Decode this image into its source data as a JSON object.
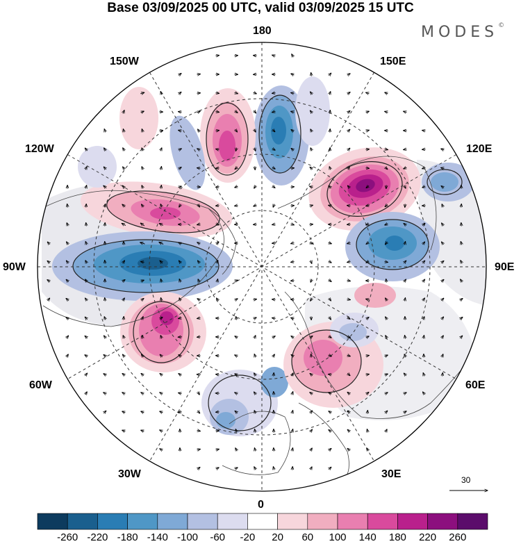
{
  "title": "Base 03/09/2025 00 UTC, valid 03/09/2025 15 UTC",
  "brand": "MODES",
  "brand_mark": "©",
  "longitude_labels": {
    "top": "180",
    "bottom": "0",
    "left": "90W",
    "right": "90E",
    "w150": "150W",
    "e150": "150E",
    "w120": "120W",
    "e120": "120E",
    "w60": "60W",
    "e60": "60E",
    "w30": "30W",
    "e30": "30E"
  },
  "reference_vector": {
    "value": "30"
  },
  "colorbar": {
    "labels": [
      "-260",
      "-220",
      "-180",
      "-140",
      "-100",
      "-60",
      "-20",
      "20",
      "60",
      "100",
      "140",
      "180",
      "220",
      "260"
    ],
    "colors": [
      "#0d3b5e",
      "#1a5f8e",
      "#2a7db4",
      "#4f97c6",
      "#7fa9d6",
      "#b3c0e2",
      "#dcdcef",
      "#ffffff",
      "#f7d6dc",
      "#f1aec0",
      "#e97fb0",
      "#d94a9d",
      "#b9208c",
      "#8c0f7e",
      "#5b0c6b"
    ]
  },
  "anomaly_centers": [
    {
      "name": "low-north-pacific",
      "value": -180
    },
    {
      "name": "high-alaska",
      "value": 200
    },
    {
      "name": "high-east-siberia",
      "value": 240
    },
    {
      "name": "low-siberia",
      "value": -180
    },
    {
      "name": "high-canada",
      "value": 180
    },
    {
      "name": "low-hudson",
      "value": -200
    },
    {
      "name": "high-west-atlantic",
      "value": 200
    },
    {
      "name": "high-europe",
      "value": 120
    },
    {
      "name": "low-ne-atlantic",
      "value": -120
    },
    {
      "name": "low-east-asia",
      "value": -80
    },
    {
      "name": "low-bering",
      "value": -100
    },
    {
      "name": "high-gulf",
      "value": 80
    }
  ]
}
